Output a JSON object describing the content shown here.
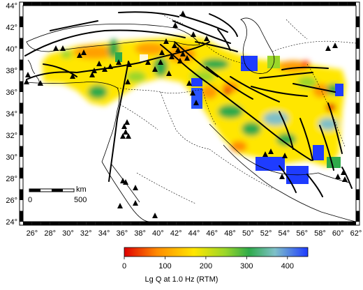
{
  "map": {
    "lon_range": [
      25,
      62
    ],
    "lat_range": [
      24,
      44
    ],
    "lon_tick_labels": [
      "26°",
      "28°",
      "30°",
      "32°",
      "34°",
      "36°",
      "38°",
      "40°",
      "42°",
      "44°",
      "46°",
      "48°",
      "50°",
      "52°",
      "54°",
      "56°",
      "58°",
      "60°",
      "62°"
    ],
    "lat_tick_labels": [
      "24°",
      "26°",
      "28°",
      "30°",
      "32°",
      "34°",
      "36°",
      "38°",
      "40°",
      "42°",
      "44°"
    ],
    "scale_bar": {
      "unit": "km",
      "start_label": "0",
      "end_label": "500"
    },
    "stations_icon": "triangle-icon"
  },
  "colorbar": {
    "tick_labels": [
      "0",
      "100",
      "200",
      "300",
      "400"
    ],
    "min": 0,
    "max": 450,
    "title": "Lg Q at 1.0 Hz (RTM)",
    "colors": [
      "#e00000",
      "#ff8c00",
      "#ffe600",
      "#9ad62a",
      "#2eaa4a",
      "#7fc0c8",
      "#1e3cff"
    ]
  }
}
